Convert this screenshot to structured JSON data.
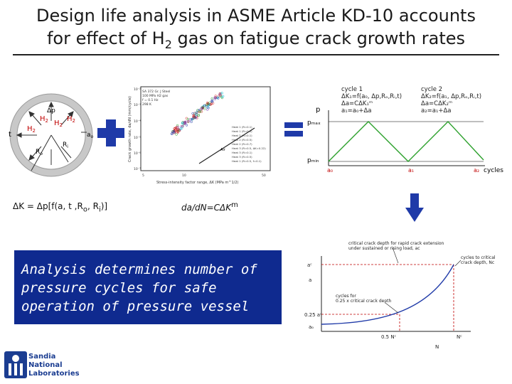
{
  "title": {
    "line1": "Design life analysis in ASME Article KD-10 accounts",
    "line2_pre": "for effect of H",
    "line2_sub": "2",
    "line2_post": " gas on fatigue crack growth rates"
  },
  "ring": {
    "dp": "Δp",
    "h2": "H",
    "h2_sub": "2",
    "t": "t",
    "a0": "a",
    "a0_sub": "o",
    "ri": "R",
    "ri_sub": "i",
    "ro": "R",
    "ro_sub": "o"
  },
  "eq1": "ΔK = Δp[f(a, t ,R",
  "eq1_o": "o",
  "eq1_mid": ", R",
  "eq1_i": "i",
  "eq1_end": ")]",
  "eq2": "da/dN=CΔK",
  "eq2_m": "m",
  "crack_chart": {
    "legend_box": [
      "SA 372 Gr. J Steel",
      "100 MPa H2 gas",
      "f = 0.1 Hz",
      "298 K"
    ],
    "ylabel": "Crack growth rate, da/dN (mm/cycle)",
    "xlabel": "Stress-intensity factor range, ΔK (MPa m^1/2)",
    "yticks": [
      "10⁻²",
      "10⁻³",
      "10⁻⁴",
      "10⁻⁵",
      "10⁻⁶",
      "10⁻⁷"
    ],
    "xticks": [
      "5",
      "10",
      "50"
    ],
    "series": [
      "Heat 1 (R=0.1)",
      "Heat 1 (R=0.5)",
      "Heat 2 (R=0.1)",
      "Heat 2 (R=0.5)",
      "Heat 2 (R=0.7)",
      "Heat 3 (R=0.5, ΔK=0.22)",
      "Heat 3 (R=0.1)",
      "Heat 3 (R=0.5)",
      "Heat 1 (R=0.5, f=0.1)"
    ],
    "air_label": "Air",
    "h2_label": "H₂"
  },
  "cycles": {
    "cycle1_title": "cycle 1",
    "cycle1_l1": "ΔK₁=f(a₀, Δp,Rₒ,Rᵢ,t)",
    "cycle1_l2": "Δa=CΔK₁ᵐ",
    "cycle1_l3": "a₁=a₀+Δa",
    "cycle2_title": "cycle 2",
    "cycle2_l1": "ΔK₂=f(a₁, Δp,Rₒ,Rᵢ,t)",
    "cycle2_l2": "Δa=CΔK₂ᵐ",
    "cycle2_l3": "a₂=a₁+Δa",
    "p": "p",
    "pmax": "pₘₐₓ",
    "pmin": "pₘᵢₙ",
    "a0": "a₀",
    "a1": "a₁",
    "a2": "a₂",
    "xaxis": "cycles"
  },
  "life": {
    "ann1_l1": "critical crack depth for rapid crack extension",
    "ann1_l2": "under sustained or rising load, ac",
    "ann2_l1": "cycles to critical",
    "ann2_l2": "crack depth, Nc",
    "ann3_l1": "cycles for",
    "ann3_l2": "0.25 x critical crack depth",
    "ac": "aᶜ",
    "a": "a",
    "quarter": "0.25 aᶜ",
    "ao": "aₒ",
    "half_nc": "0.5 Nᶜ",
    "nc": "Nᶜ",
    "n": "N"
  },
  "result": {
    "line1": "Analysis determines number of",
    "line2": "pressure cycles for safe",
    "line3": "operation of pressure vessel"
  },
  "logo": {
    "l1": "Sandia",
    "l2": "National",
    "l3": "Laboratories"
  }
}
